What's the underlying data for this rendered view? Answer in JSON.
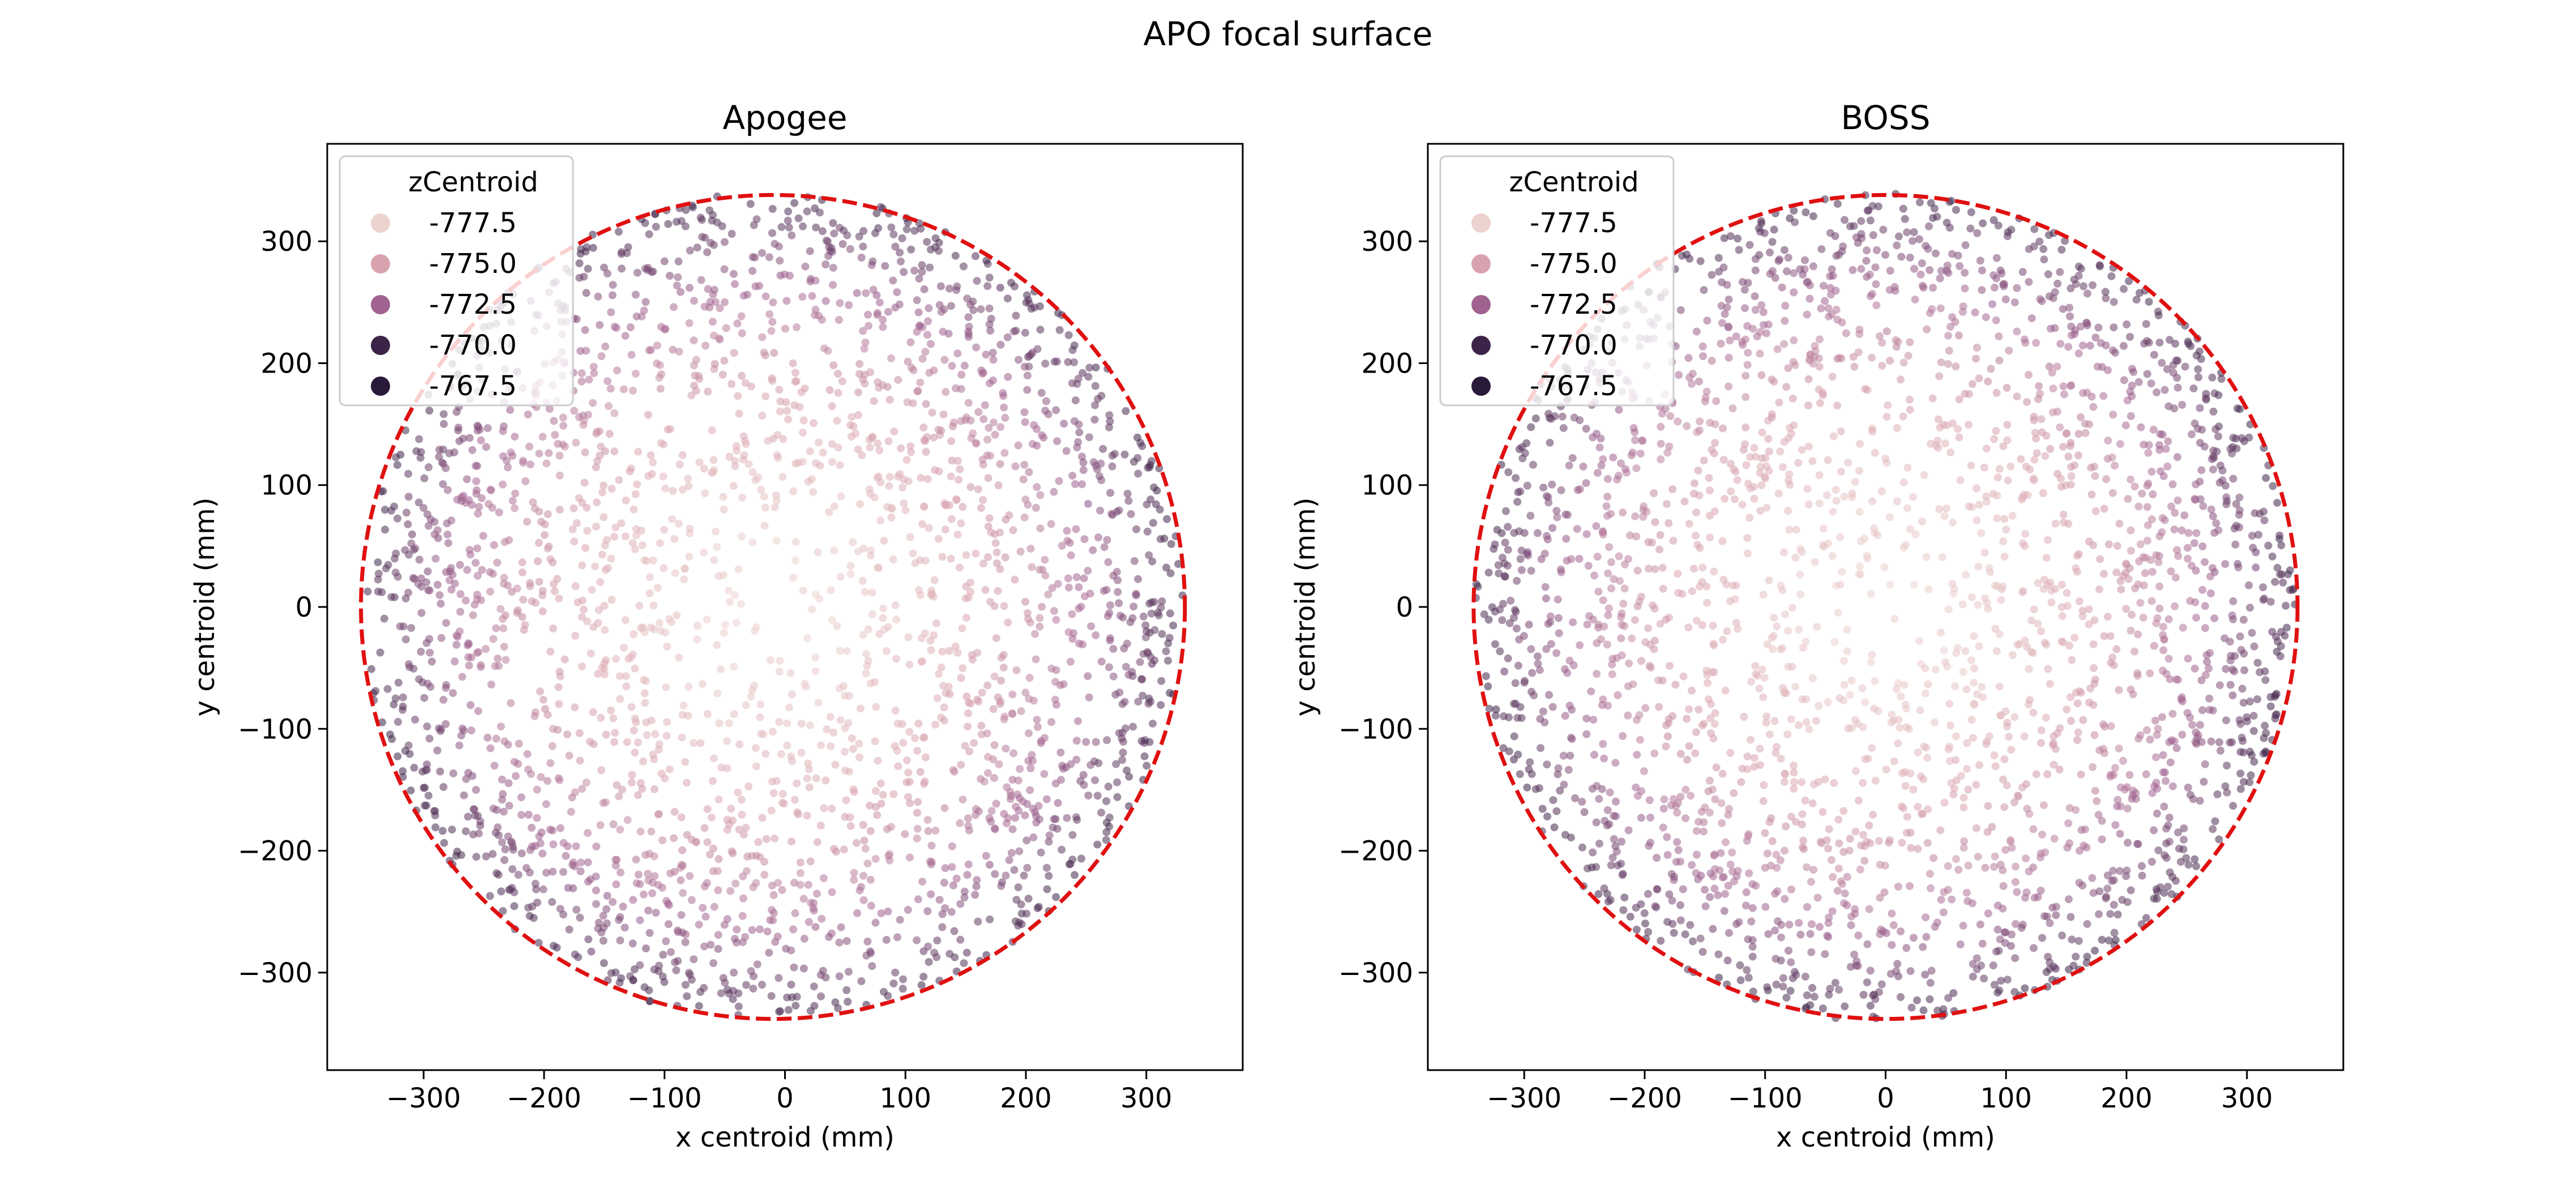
{
  "figure_title": "APO focal surface",
  "chart_data": [
    {
      "type": "scatter",
      "title": "Apogee",
      "xlabel": "x centroid (mm)",
      "ylabel": "y centroid (mm)",
      "xlim": [
        -380,
        380
      ],
      "ylim": [
        -380,
        380
      ],
      "xticks": [
        -300,
        -200,
        -100,
        0,
        100,
        200,
        300
      ],
      "yticks": [
        -300,
        -200,
        -100,
        0,
        100,
        200,
        300
      ],
      "xtick_labels": [
        "−300",
        "−200",
        "−100",
        "0",
        "100",
        "200",
        "300"
      ],
      "ytick_labels": [
        "−300",
        "−200",
        "−100",
        "0",
        "100",
        "200",
        "300"
      ],
      "hue_variable": "zCentroid",
      "point_alpha": 0.55,
      "legend_location": "upper left",
      "legend": [
        {
          "label": "-777.5",
          "color": "#ecd3cf"
        },
        {
          "label": "-775.0",
          "color": "#d8a3ae"
        },
        {
          "label": "-772.5",
          "color": "#a0628f"
        },
        {
          "label": "-770.0",
          "color": "#3c2448"
        },
        {
          "label": "-767.5",
          "color": "#2a1a3a"
        }
      ],
      "hue_mapping": "zCentroid depends on radius r = sqrt(x^2+y^2): center ≈ -777.5, edge ≈ -767.5",
      "circle": {
        "center": [
          -10,
          0
        ],
        "radius": 342,
        "style": "dashed",
        "color": "#e01010"
      },
      "point_count": 2500,
      "point_seed": 11
    },
    {
      "type": "scatter",
      "title": "BOSS",
      "xlabel": "x centroid (mm)",
      "ylabel": "y centroid (mm)",
      "xlim": [
        -380,
        380
      ],
      "ylim": [
        -380,
        380
      ],
      "xticks": [
        -300,
        -200,
        -100,
        0,
        100,
        200,
        300
      ],
      "yticks": [
        -300,
        -200,
        -100,
        0,
        100,
        200,
        300
      ],
      "xtick_labels": [
        "−300",
        "−200",
        "−100",
        "0",
        "100",
        "200",
        "300"
      ],
      "ytick_labels": [
        "−300",
        "−200",
        "−100",
        "0",
        "100",
        "200",
        "300"
      ],
      "hue_variable": "zCentroid",
      "point_alpha": 0.55,
      "legend_location": "upper left",
      "legend": [
        {
          "label": "-777.5",
          "color": "#ecd3cf"
        },
        {
          "label": "-775.0",
          "color": "#d8a3ae"
        },
        {
          "label": "-772.5",
          "color": "#a0628f"
        },
        {
          "label": "-770.0",
          "color": "#3c2448"
        },
        {
          "label": "-767.5",
          "color": "#2a1a3a"
        }
      ],
      "hue_mapping": "zCentroid depends on radius r = sqrt(x^2+y^2): center ≈ -777.5, edge ≈ -767.5",
      "circle": {
        "center": [
          0,
          0
        ],
        "radius": 342,
        "style": "dashed",
        "color": "#e01010"
      },
      "point_count": 2500,
      "point_seed": 23
    }
  ]
}
